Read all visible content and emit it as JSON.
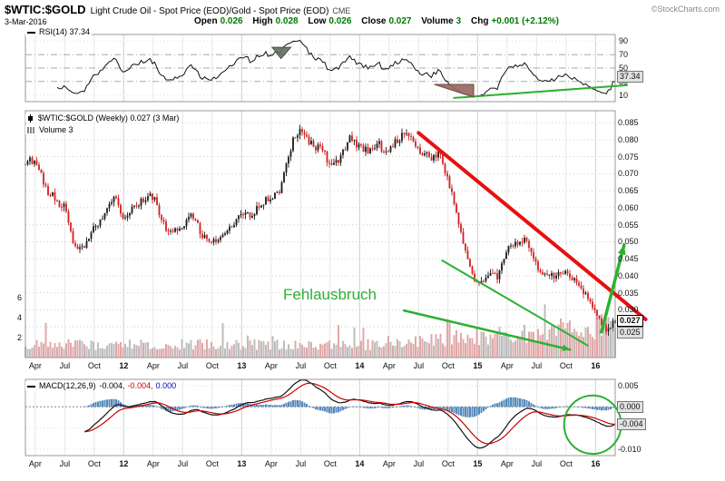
{
  "header": {
    "symbol": "$WTIC:$GOLD",
    "description": "Light Crude Oil - Spot Price (EOD)/Gold - Spot Price (EOD)",
    "exchange": "CME",
    "copyright": "©StockCharts.com",
    "date": "3-Mar-2016",
    "quote": {
      "open_label": "Open",
      "open": "0.026",
      "high_label": "High",
      "high": "0.028",
      "low_label": "Low",
      "low": "0.026",
      "close_label": "Close",
      "close": "0.027",
      "volume_label": "Volume",
      "volume": "3",
      "chg_label": "Chg",
      "chg": "+0.001 (+2.12%)"
    }
  },
  "rsi_panel": {
    "label": "RSI(14)",
    "value": "37.34",
    "ticks": [
      "90",
      "70",
      "50",
      "30",
      "10"
    ],
    "last_box": "37.34"
  },
  "main_panel": {
    "label": "$WTIC:$GOLD (Weekly)",
    "value": "0.027",
    "value_date": "(3 Mar)",
    "volume_label": "Volume",
    "volume_value": "3",
    "price_ticks": [
      "0.085",
      "0.080",
      "0.075",
      "0.070",
      "0.065",
      "0.060",
      "0.055",
      "0.050",
      "0.045",
      "0.040",
      "0.035",
      "0.030"
    ],
    "boxed_close": "0.027",
    "boxed_grey": "0.025",
    "volume_ticks": [
      "6",
      "4",
      "2"
    ]
  },
  "macd_panel": {
    "label": "MACD(12,26,9)",
    "macd_value": "-0.004,",
    "signal_value": "-0.004,",
    "hist_value": "0.000",
    "plain_ticks": [
      "0.005",
      "-0.010"
    ],
    "boxed_ticks": [
      "0.000",
      "-0.004"
    ]
  },
  "x_axis": {
    "ticks": [
      {
        "label": "Apr",
        "m": 1
      },
      {
        "label": "Jul",
        "m": 4
      },
      {
        "label": "Oct",
        "m": 7
      },
      {
        "label": "12",
        "m": 10,
        "year": true
      },
      {
        "label": "Apr",
        "m": 13
      },
      {
        "label": "Jul",
        "m": 16
      },
      {
        "label": "Oct",
        "m": 19
      },
      {
        "label": "13",
        "m": 22,
        "year": true
      },
      {
        "label": "Apr",
        "m": 25
      },
      {
        "label": "Jul",
        "m": 28
      },
      {
        "label": "Oct",
        "m": 31
      },
      {
        "label": "14",
        "m": 34,
        "year": true
      },
      {
        "label": "Apr",
        "m": 37
      },
      {
        "label": "Jul",
        "m": 40
      },
      {
        "label": "Oct",
        "m": 43
      },
      {
        "label": "15",
        "m": 46,
        "year": true
      },
      {
        "label": "Apr",
        "m": 49
      },
      {
        "label": "Jul",
        "m": 52
      },
      {
        "label": "Oct",
        "m": 55
      },
      {
        "label": "16",
        "m": 58,
        "year": true
      }
    ]
  },
  "colors": {
    "green": "#2eb033",
    "trend_red": "#e81010",
    "candle_up": "#1a1a1a",
    "candle_down": "#d02020",
    "vol_up": "#bdbdbd",
    "vol_down": "#e0a8a8",
    "hist": "#5588bb",
    "macd_line": "#111111",
    "signal_line": "#cc0000",
    "rsi_line": "#111111",
    "value_green": "#007a00"
  },
  "chart_data": {
    "type": "candlestick",
    "title": "$WTIC:$GOLD (Weekly) 0.027 (3 Mar)",
    "x_range": [
      "Mar-2011",
      "Mar-2016"
    ],
    "price_axis_range": [
      0.025,
      0.085
    ],
    "price_axis_step": 0.005,
    "start_month": "2011-03",
    "monthly_close": [
      0.0725,
      0.0745,
      0.066,
      0.0625,
      0.06,
      0.0475,
      0.049,
      0.054,
      0.058,
      0.0635,
      0.0565,
      0.06,
      0.0625,
      0.0635,
      0.055,
      0.0525,
      0.055,
      0.0575,
      0.052,
      0.0498,
      0.051,
      0.0545,
      0.0585,
      0.058,
      0.0612,
      0.063,
      0.0655,
      0.078,
      0.084,
      0.079,
      0.0775,
      0.073,
      0.0745,
      0.0815,
      0.078,
      0.0768,
      0.0782,
      0.077,
      0.08,
      0.0818,
      0.076,
      0.0748,
      0.0762,
      0.069,
      0.056,
      0.0452,
      0.0368,
      0.041,
      0.0398,
      0.0482,
      0.05,
      0.0508,
      0.043,
      0.0402,
      0.0398,
      0.0412,
      0.038,
      0.0348,
      0.029,
      0.0238,
      0.027
    ],
    "last_candle": {
      "date": "3-Mar-2016",
      "open": 0.026,
      "high": 0.028,
      "low": 0.026,
      "close": 0.027,
      "volume_millions": 3
    },
    "volume_axis_millions": [
      2,
      4,
      6
    ],
    "indicators": {
      "rsi": {
        "period": 14,
        "last": 37.34
      },
      "macd": {
        "fast": 12,
        "slow": 26,
        "signal": 9,
        "last_macd": -0.004,
        "last_signal": -0.004,
        "last_hist": 0
      }
    },
    "annotations": [
      {
        "id": "red-downtrend-line",
        "panel": "price",
        "type": "line",
        "from": [
          40,
          0.082
        ],
        "to": [
          63.1,
          0.0272
        ],
        "color": "#e81010",
        "width": 4
      },
      {
        "id": "wedge-upper-line",
        "panel": "price",
        "type": "line",
        "from": [
          42.4,
          0.0445
        ],
        "to": [
          57.2,
          0.0195
        ],
        "color": "green",
        "width": 2
      },
      {
        "id": "wedge-lower-arrow",
        "panel": "price",
        "type": "arrow",
        "from": [
          38.5,
          0.0298
        ],
        "to": [
          55.4,
          0.0183
        ],
        "color": "green",
        "width": 2.5,
        "head": 9
      },
      {
        "id": "breakout-arrow",
        "panel": "price",
        "type": "arrow",
        "from": [
          58.6,
          0.0235
        ],
        "to": [
          60.9,
          0.049
        ],
        "color": "green",
        "width": 3.5,
        "head": 11
      },
      {
        "id": "fehlausbruch-text",
        "panel": "price",
        "type": "text",
        "text": "Fehlausbruch",
        "at": [
          31.6,
          0.0345
        ],
        "color": "green",
        "size": 17
      },
      {
        "id": "rsi-support-line",
        "panel": "rsi",
        "type": "line",
        "from": [
          43.6,
          5.5
        ],
        "to": [
          61.2,
          24.5
        ],
        "color": "green",
        "width": 2
      },
      {
        "id": "rsi-shaded-triangle",
        "panel": "rsi",
        "type": "polygon",
        "points": [
          [
            41.6,
            25.7
          ],
          [
            45.6,
            25.7
          ],
          [
            45.6,
            6.8
          ]
        ],
        "fill": "#97655f",
        "stroke": "#6d4a45"
      },
      {
        "id": "rsi-shaded-triangle-2013",
        "panel": "rsi",
        "type": "polygon",
        "points": [
          [
            25.1,
            81
          ],
          [
            27.0,
            81
          ],
          [
            26.0,
            64
          ]
        ],
        "fill": "#5f6f5f",
        "stroke": "#4a564a"
      },
      {
        "id": "macd-ellipse",
        "panel": "macd",
        "type": "ellipse",
        "center": [
          57.7,
          -0.0042
        ],
        "rx": 2.9,
        "ry": 0.0069,
        "color": "green",
        "width": 2
      }
    ]
  }
}
